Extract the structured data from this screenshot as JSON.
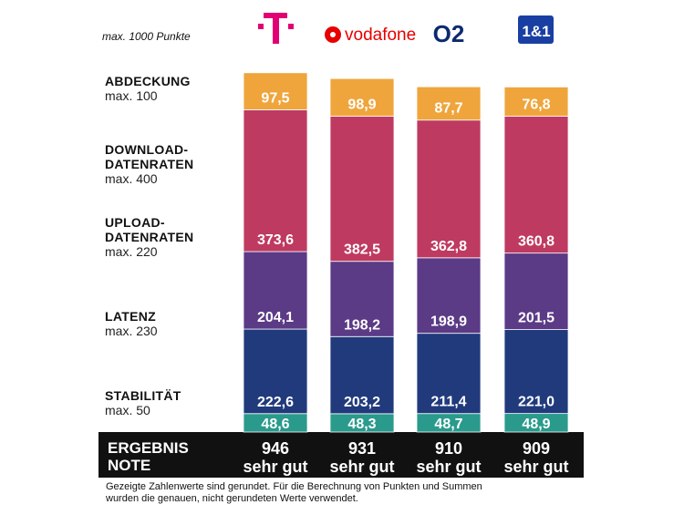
{
  "chart_data": {
    "type": "stacked_bar",
    "subtitle": "max. 1000 Punkte",
    "categories": [
      null,
      "vodafone",
      "O2",
      "1&1"
    ],
    "series": [
      {
        "name": "STABILITÄT",
        "max": "max. 50",
        "color": "#2a9a8c",
        "values": [
          48.6,
          48.3,
          48.7,
          48.9
        ],
        "value_labels": [
          "48,6",
          "48,3",
          "48,7",
          "48,9"
        ]
      },
      {
        "name": "LATENZ",
        "max": "max. 230",
        "color": "#203a7c",
        "values": [
          222.6,
          203.2,
          211.4,
          221.0
        ],
        "value_labels": [
          "222,6",
          "203,2",
          "211,4",
          "221,0"
        ]
      },
      {
        "name": "UPLOAD-DATENRATEN",
        "max": "max. 220",
        "color": "#5b3a86",
        "values": [
          204.1,
          198.2,
          198.9,
          201.5
        ],
        "value_labels": [
          "204,1",
          "198,2",
          "198,9",
          "201,5"
        ]
      },
      {
        "name": "DOWNLOAD-DATENRATEN",
        "max": "max. 400",
        "color": "#bf3a60",
        "values": [
          373.6,
          382.5,
          362.8,
          360.8
        ],
        "value_labels": [
          "373,6",
          "382,5",
          "362,8",
          "360,8"
        ]
      },
      {
        "name": "ABDECKUNG",
        "max": "max. 100",
        "color": "#efa53c",
        "values": [
          97.5,
          98.9,
          87.7,
          76.8
        ],
        "value_labels": [
          "97,5",
          "98,9",
          "87,7",
          "76,8"
        ]
      }
    ],
    "total_label": "ERGEBNIS",
    "grade_label": "NOTE",
    "totals": [
      946,
      931,
      910,
      909
    ],
    "grades": [
      "sehr gut",
      "sehr gut",
      "sehr gut",
      "sehr gut"
    ],
    "footnote": "Gezeigte Zahlenwerte sind gerundet. Für die Berechnung von Punkten und Summen wurden die genauen, nicht gerundeten Werte verwendet."
  }
}
